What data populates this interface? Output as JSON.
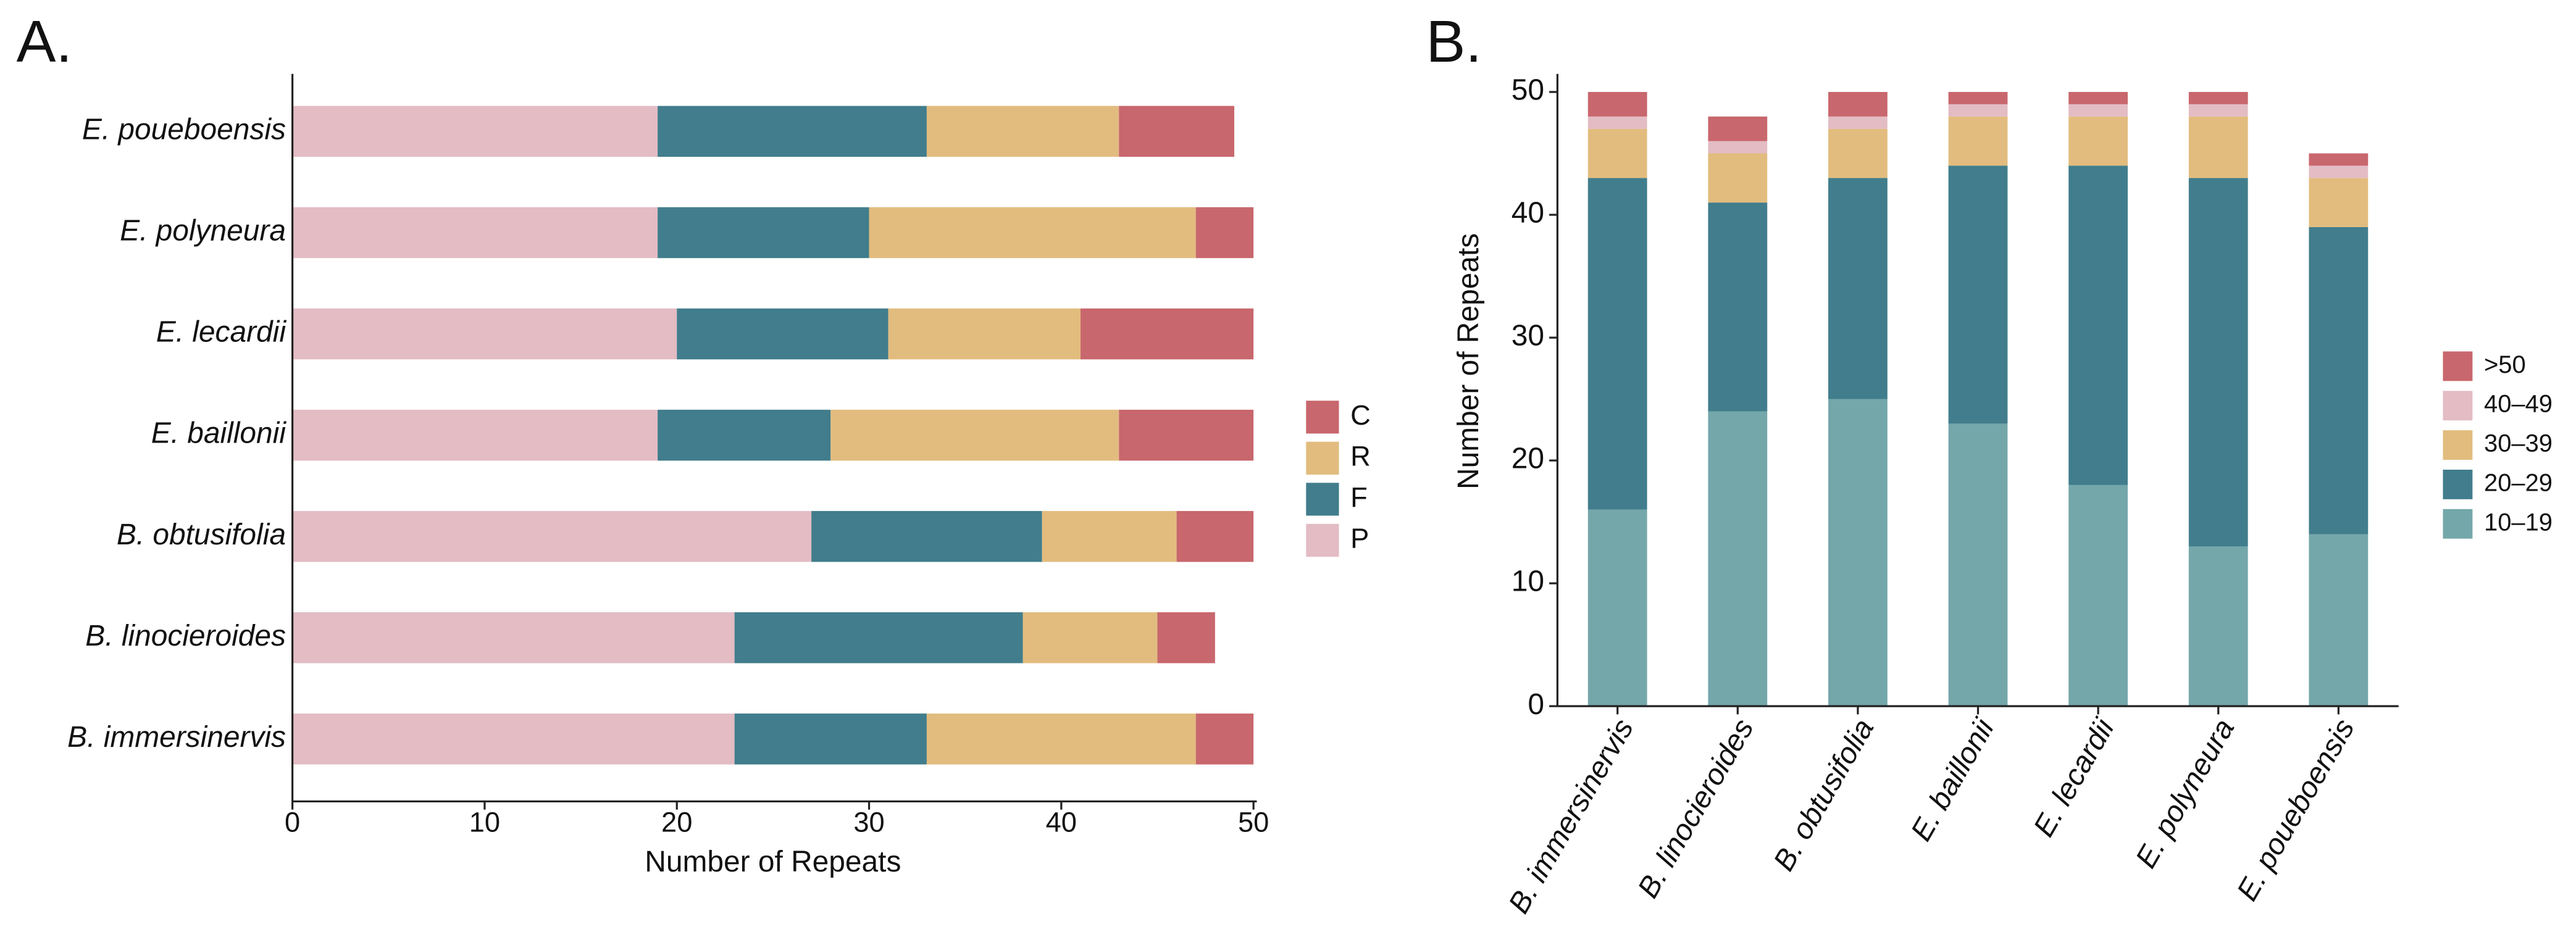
{
  "chart_data": [
    {
      "type": "hbar-stacked",
      "panel_label": "A.",
      "xlabel": "Number of Repeats",
      "categories": [
        "B. immersinervis",
        "B. linocieroides",
        "B. obtusifolia",
        "E. baillonii",
        "E. lecardii",
        "E. polyneura",
        "E. poueboensis"
      ],
      "series": [
        {
          "name": "P",
          "color": "#e3bcc4",
          "values": [
            23,
            23,
            27,
            19,
            20,
            19,
            19
          ]
        },
        {
          "name": "F",
          "color": "#417d8c",
          "values": [
            10,
            15,
            12,
            9,
            11,
            11,
            14
          ]
        },
        {
          "name": "R",
          "color": "#e2bc7e",
          "values": [
            14,
            7,
            7,
            15,
            10,
            17,
            10
          ]
        },
        {
          "name": "C",
          "color": "#c8676d",
          "values": [
            3,
            3,
            4,
            7,
            9,
            3,
            6
          ]
        }
      ],
      "xlim": [
        0,
        50
      ],
      "xticks": [
        0,
        10,
        20,
        30,
        40,
        50
      ],
      "legend": "right"
    },
    {
      "type": "bar-stacked",
      "panel_label": "B.",
      "ylabel": "Number of Repeats",
      "categories": [
        "B. immersinervis",
        "B. linocieroides",
        "B. obtusifolia",
        "E. baillonii",
        "E. lecardii",
        "E. polyneura",
        "E. poueboensis"
      ],
      "series": [
        {
          "name": "10–19",
          "color": "#74a7aa",
          "values": [
            16,
            24,
            25,
            23,
            18,
            13,
            14
          ]
        },
        {
          "name": "20–29",
          "color": "#417d8c",
          "values": [
            27,
            17,
            18,
            21,
            26,
            30,
            25
          ]
        },
        {
          "name": "30–39",
          "color": "#e2bc7e",
          "values": [
            4,
            4,
            4,
            4,
            4,
            5,
            4
          ]
        },
        {
          "name": "40–49",
          "color": "#e3bcc4",
          "values": [
            1,
            1,
            1,
            1,
            1,
            1,
            1
          ]
        },
        {
          "name": ">50",
          "color": "#c8676d",
          "values": [
            2,
            2,
            2,
            1,
            1,
            1,
            1
          ]
        }
      ],
      "ylim": [
        0,
        50
      ],
      "yticks": [
        0,
        10,
        20,
        30,
        40,
        50
      ],
      "legend": "right"
    }
  ]
}
